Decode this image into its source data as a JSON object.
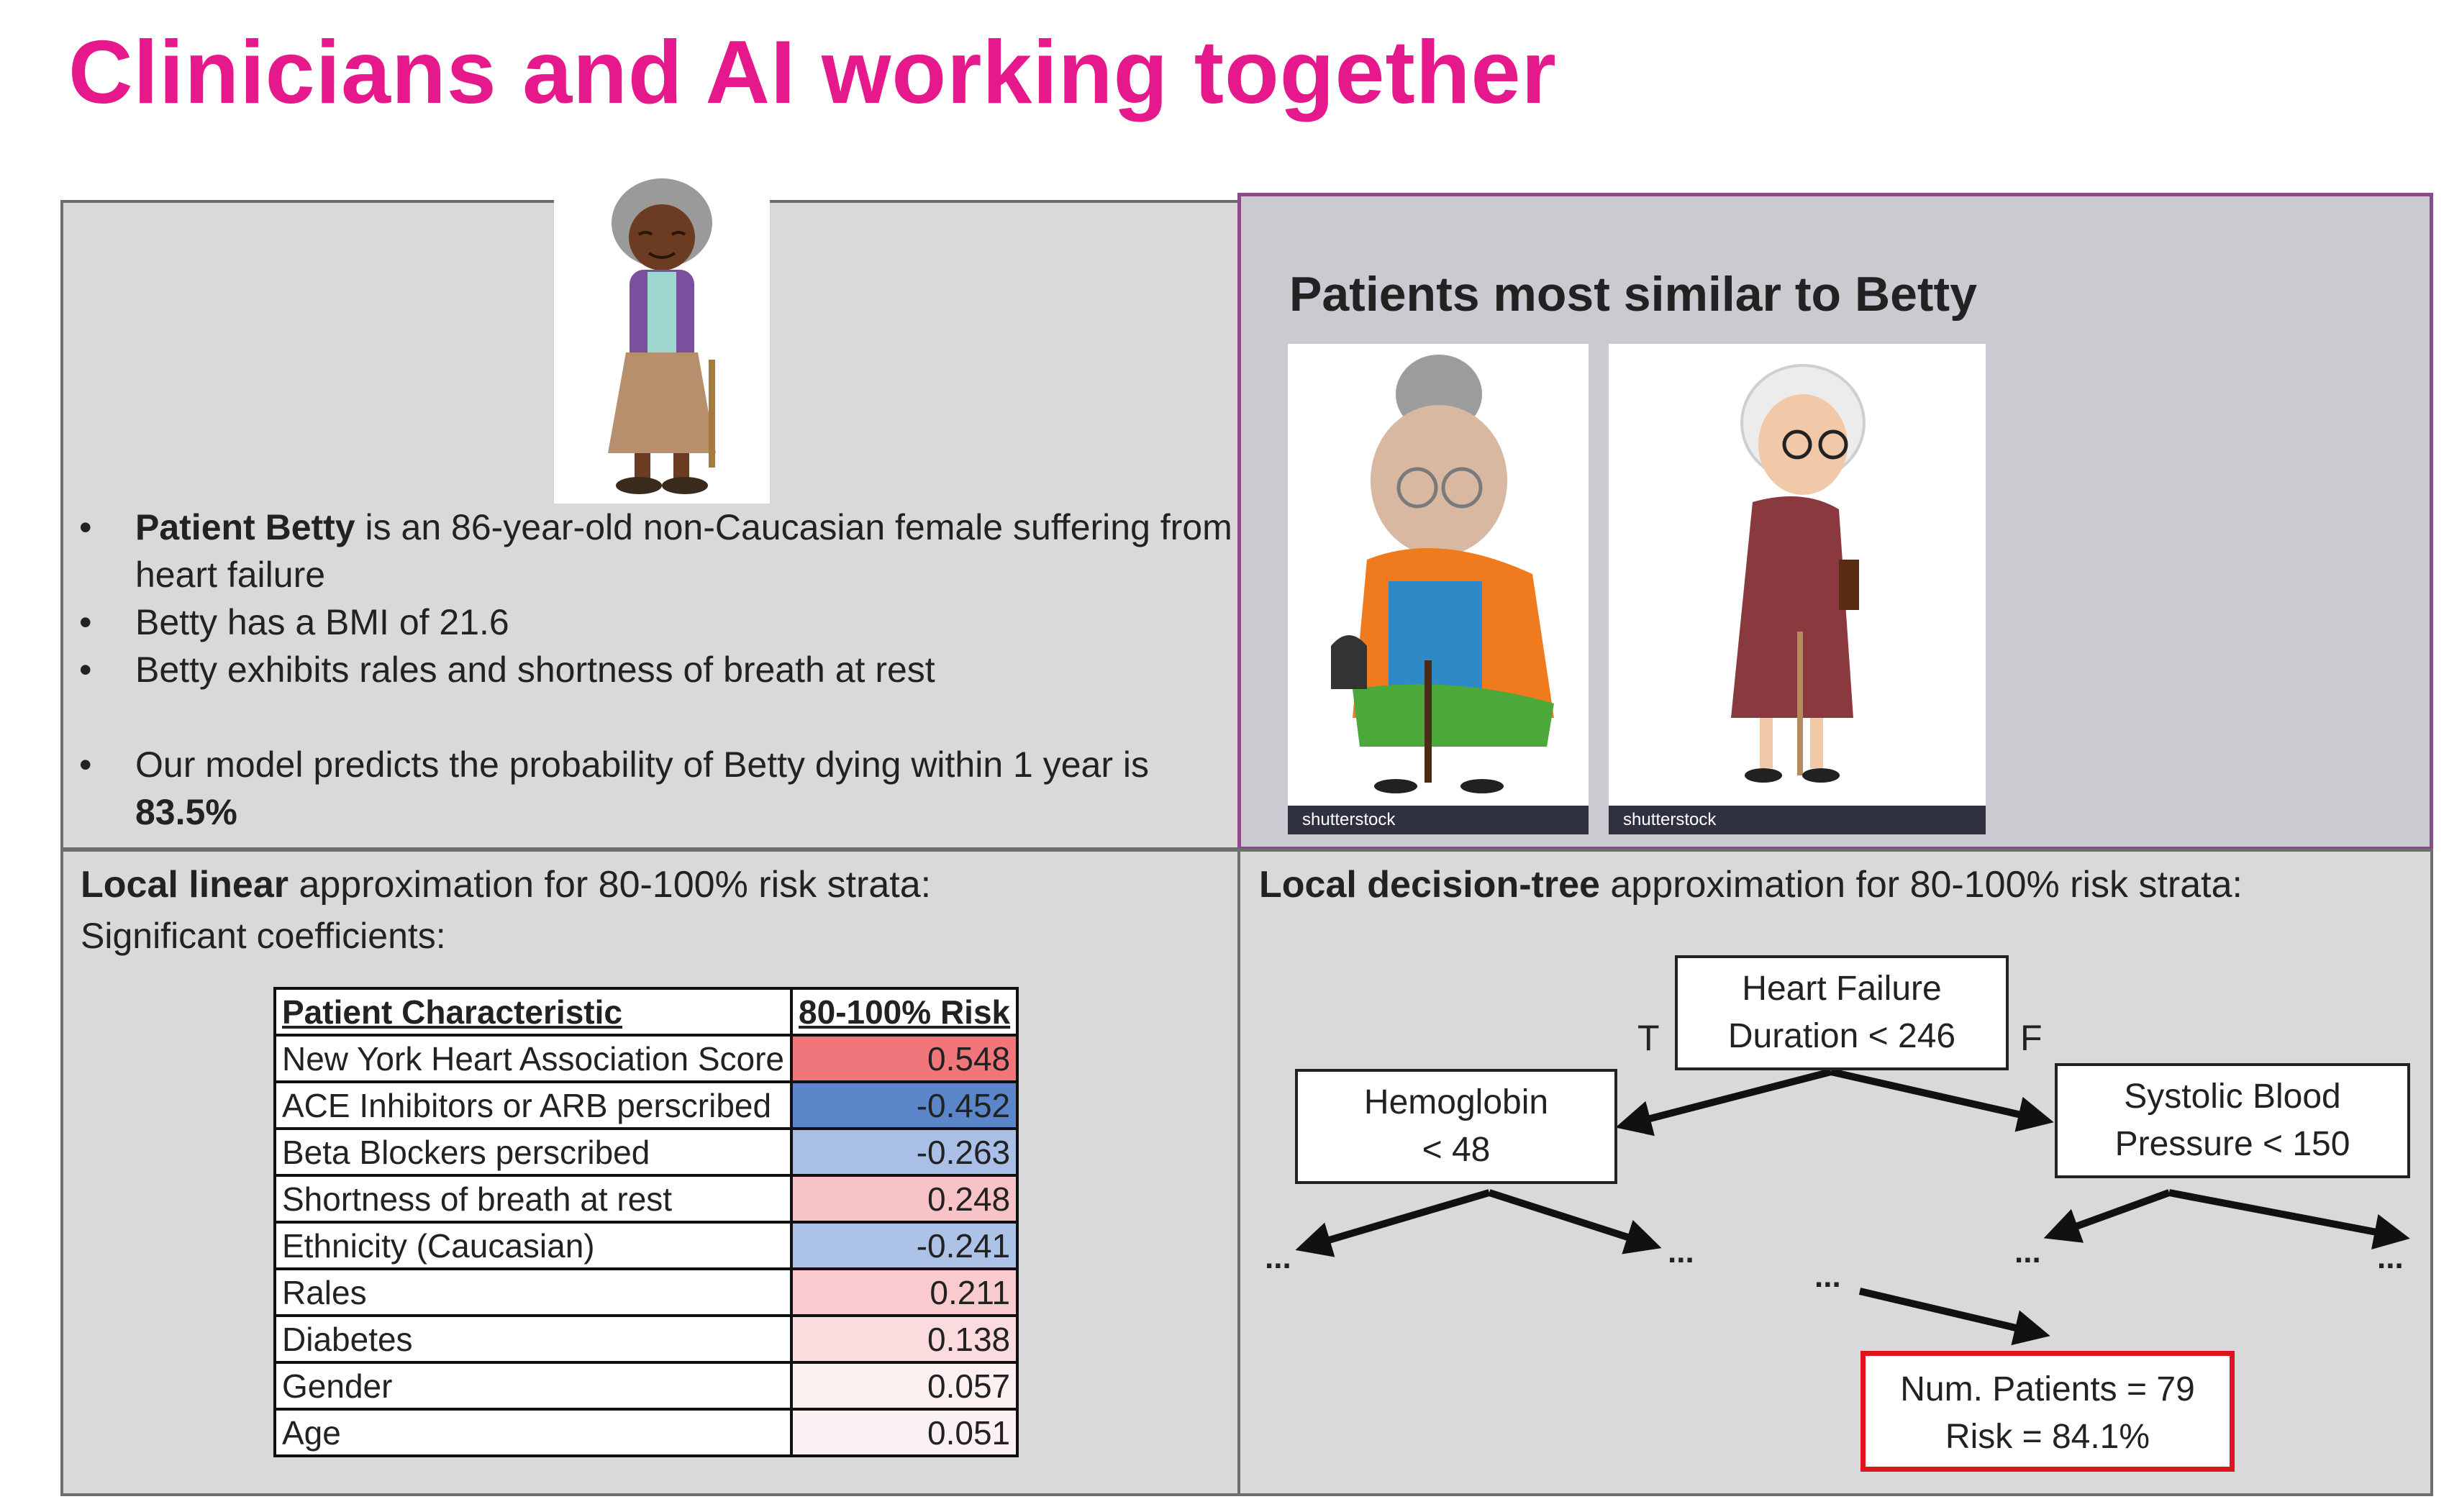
{
  "title": "Clinicians and AI working together",
  "patient": {
    "bullets": [
      {
        "bold": "Patient Betty",
        "rest": " is an 86-year-old non-Caucasian female suffering from",
        "line2": "heart failure"
      },
      {
        "bold": "",
        "rest": "Betty has a BMI of 21.6"
      },
      {
        "bold": "",
        "rest": "Betty exhibits rales and shortness of breath at rest"
      },
      {
        "bold": "",
        "rest": "Our model predicts the probability of Betty dying within 1 year is",
        "line2": "83.5%"
      }
    ],
    "bullet_char": "•"
  },
  "similar": {
    "heading": "Patients most similar to Betty",
    "watermark": "shutterstock"
  },
  "linear": {
    "heading_bold": "Local linear",
    "heading_rest": " approximation for 80-100% risk strata:",
    "subheading": "Significant coefficients:",
    "columns": [
      "Patient Characteristic",
      "80-100% Risk"
    ],
    "rows": [
      {
        "name": "New York Heart Association Score",
        "value": "0.548",
        "color": "#f0767c"
      },
      {
        "name": "ACE Inhibitors or ARB perscribed",
        "value": "-0.452",
        "color": "#5b86c9"
      },
      {
        "name": "Beta Blockers perscribed",
        "value": "-0.263",
        "color": "#a9bfe6"
      },
      {
        "name": "Shortness of breath at rest",
        "value": "0.248",
        "color": "#f8c3c6"
      },
      {
        "name": "Ethnicity (Caucasian)",
        "value": "-0.241",
        "color": "#acc2e7"
      },
      {
        "name": "Rales",
        "value": "0.211",
        "color": "#f9cbce"
      },
      {
        "name": "Diabetes",
        "value": "0.138",
        "color": "#fbdbdd"
      },
      {
        "name": "Gender",
        "value": "0.057",
        "color": "#fdf0f1"
      },
      {
        "name": "Age",
        "value": "0.051",
        "color": "#fdf2f3"
      }
    ]
  },
  "tree": {
    "heading_bold": "Local decision-tree",
    "heading_rest": " approximation for 80-100% risk strata:",
    "root": [
      "Heart Failure",
      "Duration < 246"
    ],
    "true_label": "T",
    "false_label": "F",
    "left": [
      "Hemoglobin",
      "< 48"
    ],
    "right": [
      "Systolic Blood",
      "Pressure < 150"
    ],
    "ellipsis": "...",
    "leaf": [
      "Num. Patients = 79",
      "Risk = 84.1%"
    ],
    "leaf_border_color": "#e0141e"
  }
}
